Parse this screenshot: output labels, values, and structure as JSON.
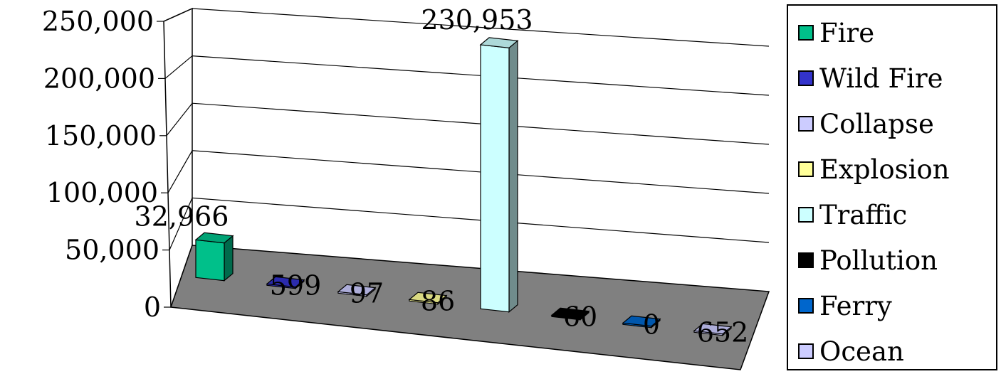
{
  "chart_data": {
    "type": "bar",
    "title": "",
    "xlabel": "",
    "ylabel": "",
    "ylim": [
      0,
      250000
    ],
    "y_ticks": [
      "0",
      "50,000",
      "100,000",
      "150,000",
      "200,000",
      "250,000"
    ],
    "grid": true,
    "legend_position": "right",
    "series": [
      {
        "name": "Fire",
        "value": 32966,
        "label": "32,966",
        "color": "#00C08A"
      },
      {
        "name": "Wild Fire",
        "value": 599,
        "label": "599",
        "color": "#3333CC"
      },
      {
        "name": "Collapse",
        "value": 97,
        "label": "97",
        "color": "#CCCCFF"
      },
      {
        "name": "Explosion",
        "value": 86,
        "label": "86",
        "color": "#FFFF99"
      },
      {
        "name": "Traffic",
        "value": 230953,
        "label": "230,953",
        "color": "#CCFFFF"
      },
      {
        "name": "Pollution",
        "value": 60,
        "label": "60",
        "color": "#000000"
      },
      {
        "name": "Ferry",
        "value": 0,
        "label": "0",
        "color": "#0066CC"
      },
      {
        "name": "Ocean",
        "value": 652,
        "label": "652",
        "color": "#CCCCFF"
      }
    ]
  },
  "colors": {
    "floor": "#808080",
    "wall": "#ffffff",
    "gridline": "#000000"
  }
}
